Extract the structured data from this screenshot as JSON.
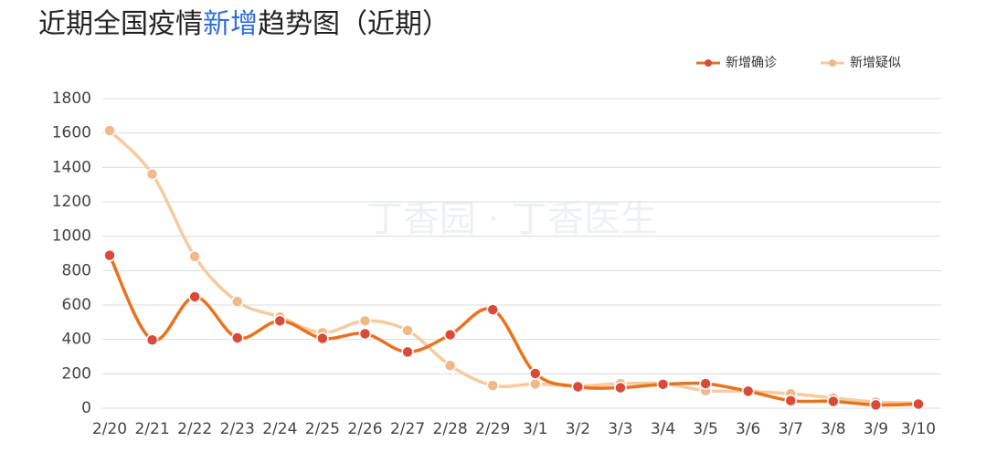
{
  "chart_data": {
    "type": "line",
    "title": [
      "近期全国疫情",
      "新增",
      "趋势图（近期）"
    ],
    "watermark": "丁香园 · 丁香医生",
    "categories": [
      "2/20",
      "2/21",
      "2/22",
      "2/23",
      "2/24",
      "2/25",
      "2/26",
      "2/27",
      "2/28",
      "2/29",
      "3/1",
      "3/2",
      "3/3",
      "3/4",
      "3/5",
      "3/6",
      "3/7",
      "3/8",
      "3/9",
      "3/10"
    ],
    "series": [
      {
        "name": "新增确诊",
        "color": "#e8731f",
        "marker_color": "#d94a3a",
        "values": [
          889,
          397,
          648,
          409,
          508,
          406,
          433,
          327,
          427,
          573,
          202,
          125,
          119,
          139,
          143,
          99,
          44,
          40,
          19,
          24
        ]
      },
      {
        "name": "新增疑似",
        "color": "#f5cb9f",
        "marker_color": "#f0b98a",
        "values": [
          1614,
          1361,
          882,
          620,
          530,
          439,
          508,
          452,
          248,
          132,
          141,
          129,
          143,
          143,
          102,
          99,
          84,
          60,
          36,
          31
        ]
      }
    ],
    "ylim": [
      0,
      1800
    ],
    "yticks": [
      0,
      200,
      400,
      600,
      800,
      1000,
      1200,
      1400,
      1600,
      1800
    ],
    "grid": true,
    "smooth": true,
    "legend": "top-right"
  }
}
